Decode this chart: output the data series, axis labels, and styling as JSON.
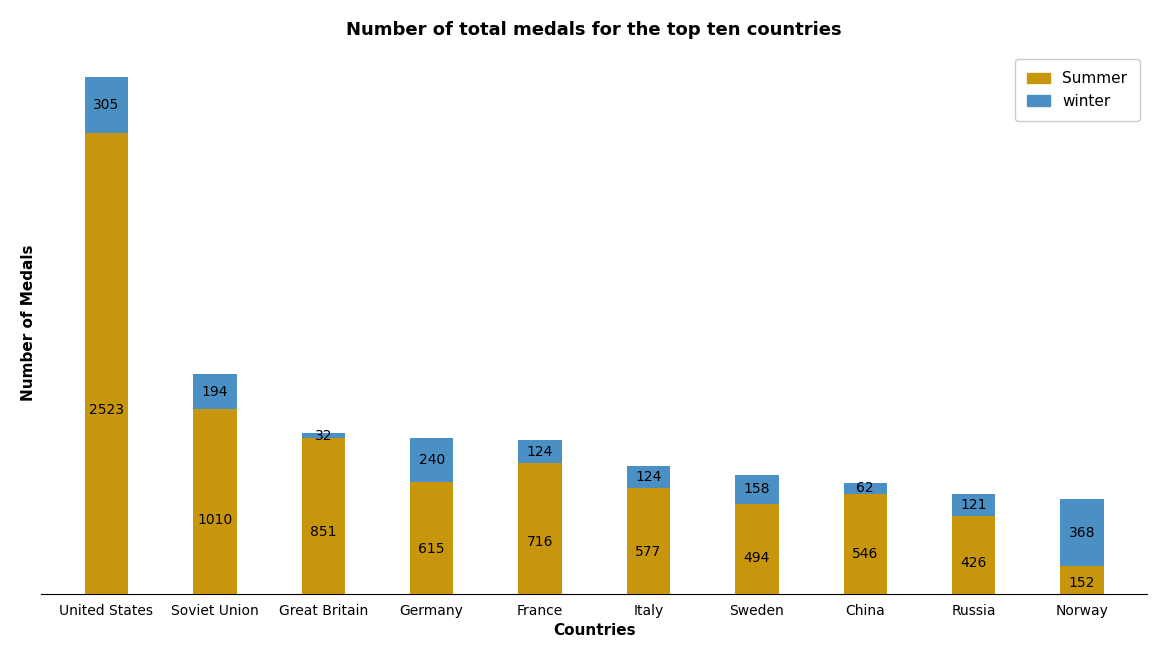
{
  "title": "Number of total medals for the top ten countries",
  "xlabel": "Countries",
  "ylabel": "Number of Medals",
  "categories": [
    "United States",
    "Soviet Union",
    "Great Britain",
    "Germany",
    "France",
    "Italy",
    "Sweden",
    "China",
    "Russia",
    "Norway"
  ],
  "summer_values": [
    2523,
    1010,
    851,
    615,
    716,
    577,
    494,
    546,
    426,
    152
  ],
  "winter_values": [
    305,
    194,
    32,
    240,
    124,
    124,
    158,
    62,
    121,
    368
  ],
  "summer_color": "#C8960C",
  "winter_color": "#4A90C4",
  "summer_label": "Summer",
  "winter_label": "winter",
  "bar_width": 0.4,
  "title_fontsize": 13,
  "axis_label_fontsize": 11,
  "tick_fontsize": 10,
  "annotation_fontsize": 10,
  "legend_fontsize": 11,
  "background_color": "#ffffff",
  "figsize": [
    11.68,
    6.59
  ],
  "dpi": 100
}
